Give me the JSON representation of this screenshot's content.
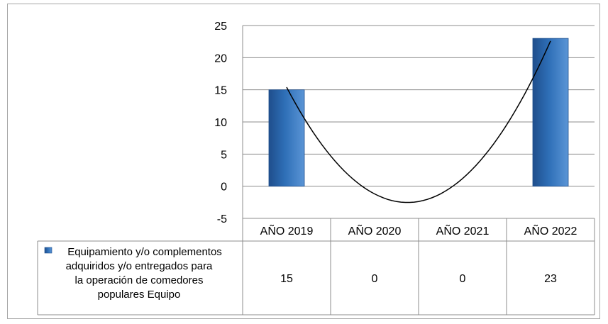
{
  "chart_data": {
    "type": "bar",
    "categories": [
      "AÑO 2019",
      "AÑO 2020",
      "AÑO 2021",
      "AÑO 2022"
    ],
    "series": [
      {
        "name": "Equipamiento y/o complementos adquiridos y/o entregados para la operación de comedores populares Equipo",
        "values": [
          15,
          0,
          0,
          23
        ],
        "color": "#2e6fb7"
      }
    ],
    "trendline": {
      "type": "polynomial",
      "order": 2,
      "color": "#000000"
    },
    "ylim": [
      -5,
      25
    ],
    "yticks": [
      25,
      20,
      15,
      10,
      5,
      0,
      -5
    ],
    "grid": true,
    "data_table": true,
    "legend": {
      "lines": [
        "Equipamiento y/o complementos",
        "adquiridos y/o entregados para",
        "la operación de comedores",
        "populares Equipo"
      ]
    }
  }
}
